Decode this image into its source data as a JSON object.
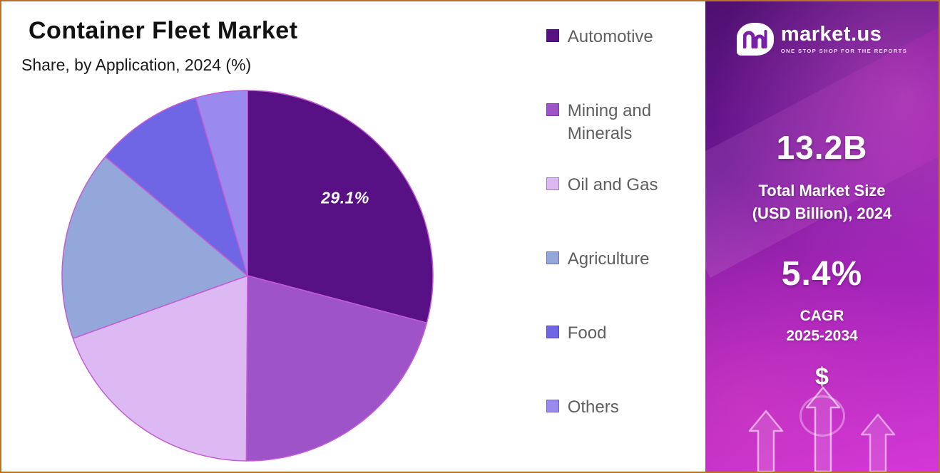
{
  "header": {
    "title": "Container Fleet Market",
    "subtitle": "Share, by Application, 2024 (%)"
  },
  "chart_data": {
    "type": "pie",
    "title": "Container Fleet Market",
    "subtitle": "Share, by Application, 2024 (%)",
    "labels": [
      "Automotive",
      "Mining and Minerals",
      "Oil and Gas",
      "Agriculture",
      "Food",
      "Others"
    ],
    "values": [
      29.1,
      21.0,
      19.4,
      16.6,
      9.4,
      4.5
    ],
    "colors": [
      "#571184",
      "#9e54c8",
      "#dcb9f2",
      "#93a7da",
      "#6f66e6",
      "#9a8af0"
    ],
    "stroke_color": "#c45bd6",
    "start_angle_deg": 0,
    "direction": "clockwise",
    "legend_position": "right",
    "data_label": {
      "slice": "Automotive",
      "text": "29.1%"
    }
  },
  "sidebar": {
    "logo_name": "market.us",
    "logo_tagline": "ONE STOP SHOP FOR THE REPORTS",
    "stat1_value": "13.2B",
    "stat1_label_line1": "Total Market Size",
    "stat1_label_line2": "(USD Billion), 2024",
    "stat2_value": "5.4%",
    "stat2_label_line1": "CAGR",
    "stat2_label_line2": "2025-2034",
    "dollar_icon": "$"
  }
}
